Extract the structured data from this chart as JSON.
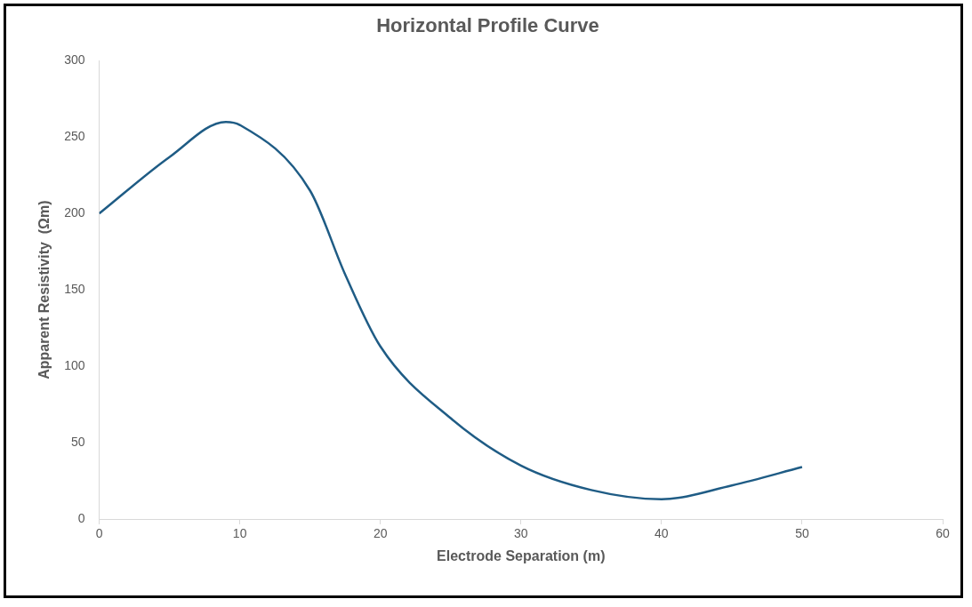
{
  "chart_data": {
    "type": "line",
    "title": "Horizontal Profile Curve",
    "xlabel": "Electrode Separation (m)",
    "ylabel": "Apparent Resistivity  (Ωm)",
    "x": [
      0,
      5,
      9,
      10,
      15,
      17.5,
      20,
      25,
      30,
      35,
      40,
      45,
      50
    ],
    "series": [
      {
        "color": "#1f5c85",
        "values": [
          200,
          237,
          260,
          258,
          215,
          160,
          113,
          66,
          35,
          19,
          13,
          22,
          34
        ]
      }
    ],
    "xlim": [
      0,
      60
    ],
    "xticks": [
      0,
      10,
      20,
      30,
      40,
      50,
      60
    ],
    "ylim": [
      0,
      300
    ],
    "yticks": [
      0,
      50,
      100,
      150,
      200,
      250,
      300
    ],
    "grid": false,
    "legend": false,
    "marker": "none"
  }
}
